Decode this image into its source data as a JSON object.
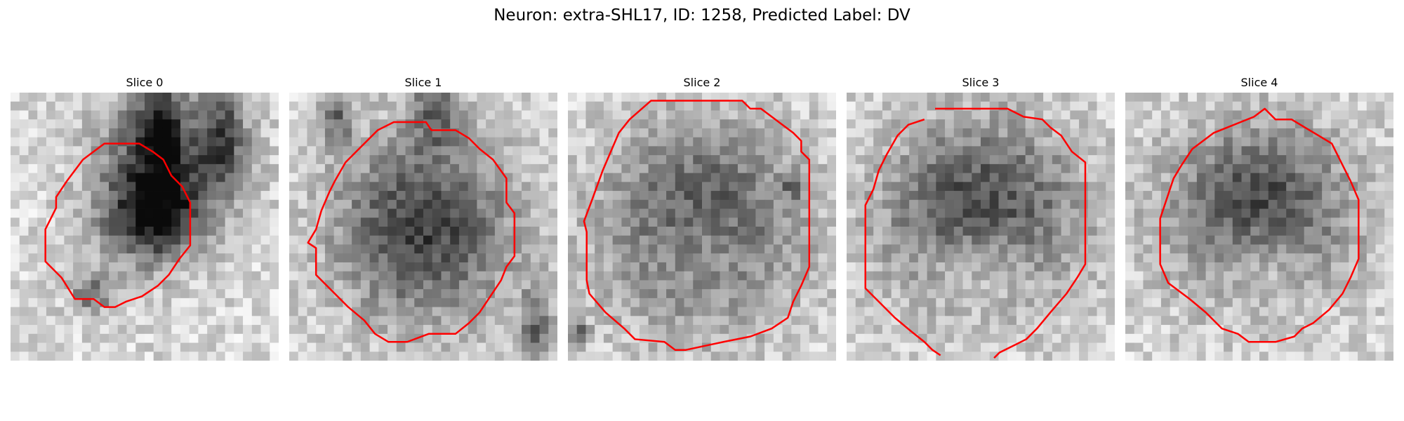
{
  "figure": {
    "title": "Neuron: extra-SHL17, ID: 1258, Predicted Label: DV"
  },
  "contour_color": "#ff0000",
  "slices": [
    {
      "title": "Slice 0",
      "seed": 11,
      "darkness": [
        [
          0.52,
          0.48,
          0.22,
          0.2
        ],
        [
          0.58,
          0.26,
          0.3,
          0.32
        ]
      ],
      "spots": [
        [
          0.8,
          0.15,
          0.1,
          0.25
        ],
        [
          0.55,
          0.1,
          0.1,
          0.28
        ],
        [
          0.3,
          0.75,
          0.1,
          0.1
        ]
      ],
      "contour": [
        [
          0.35,
          0.19
        ],
        [
          0.48,
          0.19
        ],
        [
          0.53,
          0.22
        ],
        [
          0.57,
          0.25
        ],
        [
          0.6,
          0.31
        ],
        [
          0.64,
          0.35
        ],
        [
          0.67,
          0.41
        ],
        [
          0.67,
          0.57
        ],
        [
          0.63,
          0.62
        ],
        [
          0.59,
          0.68
        ],
        [
          0.55,
          0.72
        ],
        [
          0.49,
          0.76
        ],
        [
          0.43,
          0.78
        ],
        [
          0.39,
          0.8
        ],
        [
          0.35,
          0.8
        ],
        [
          0.31,
          0.77
        ],
        [
          0.24,
          0.77
        ],
        [
          0.19,
          0.69
        ],
        [
          0.13,
          0.63
        ],
        [
          0.13,
          0.51
        ],
        [
          0.17,
          0.43
        ],
        [
          0.17,
          0.39
        ],
        [
          0.21,
          0.33
        ],
        [
          0.27,
          0.25
        ]
      ]
    },
    {
      "title": "Slice 1",
      "seed": 23,
      "darkness": [
        [
          0.5,
          0.51,
          0.41,
          0.42
        ]
      ],
      "spots": [
        [
          0.55,
          0.05,
          0.12,
          0.2
        ],
        [
          0.92,
          0.9,
          0.08,
          0.22
        ],
        [
          0.18,
          0.1,
          0.08,
          0.12
        ]
      ],
      "contour": [
        [
          0.44,
          0.11
        ],
        [
          0.51,
          0.11
        ],
        [
          0.53,
          0.14
        ],
        [
          0.62,
          0.14
        ],
        [
          0.67,
          0.17
        ],
        [
          0.71,
          0.21
        ],
        [
          0.76,
          0.25
        ],
        [
          0.81,
          0.32
        ],
        [
          0.81,
          0.41
        ],
        [
          0.84,
          0.45
        ],
        [
          0.84,
          0.61
        ],
        [
          0.81,
          0.65
        ],
        [
          0.79,
          0.7
        ],
        [
          0.75,
          0.76
        ],
        [
          0.71,
          0.82
        ],
        [
          0.67,
          0.86
        ],
        [
          0.62,
          0.9
        ],
        [
          0.52,
          0.9
        ],
        [
          0.44,
          0.93
        ],
        [
          0.37,
          0.93
        ],
        [
          0.32,
          0.9
        ],
        [
          0.28,
          0.85
        ],
        [
          0.22,
          0.8
        ],
        [
          0.15,
          0.73
        ],
        [
          0.1,
          0.68
        ],
        [
          0.1,
          0.58
        ],
        [
          0.07,
          0.56
        ],
        [
          0.1,
          0.51
        ],
        [
          0.12,
          0.44
        ],
        [
          0.15,
          0.37
        ],
        [
          0.17,
          0.33
        ],
        [
          0.21,
          0.26
        ],
        [
          0.27,
          0.2
        ],
        [
          0.33,
          0.14
        ],
        [
          0.39,
          0.11
        ]
      ]
    },
    {
      "title": "Slice 2",
      "seed": 37,
      "darkness": [
        [
          0.5,
          0.5,
          0.44,
          0.45
        ]
      ],
      "spots": [
        [
          0.85,
          0.35,
          0.05,
          0.05
        ],
        [
          0.05,
          0.9,
          0.05,
          0.05
        ]
      ],
      "contour": [
        [
          0.31,
          0.03
        ],
        [
          0.65,
          0.03
        ],
        [
          0.68,
          0.06
        ],
        [
          0.72,
          0.06
        ],
        [
          0.76,
          0.09
        ],
        [
          0.8,
          0.12
        ],
        [
          0.84,
          0.15
        ],
        [
          0.87,
          0.18
        ],
        [
          0.87,
          0.22
        ],
        [
          0.9,
          0.25
        ],
        [
          0.9,
          0.65
        ],
        [
          0.87,
          0.72
        ],
        [
          0.84,
          0.78
        ],
        [
          0.82,
          0.84
        ],
        [
          0.76,
          0.88
        ],
        [
          0.68,
          0.91
        ],
        [
          0.58,
          0.93
        ],
        [
          0.44,
          0.96
        ],
        [
          0.4,
          0.96
        ],
        [
          0.36,
          0.93
        ],
        [
          0.25,
          0.92
        ],
        [
          0.21,
          0.88
        ],
        [
          0.14,
          0.82
        ],
        [
          0.08,
          0.75
        ],
        [
          0.07,
          0.7
        ],
        [
          0.07,
          0.52
        ],
        [
          0.06,
          0.48
        ],
        [
          0.09,
          0.4
        ],
        [
          0.13,
          0.29
        ],
        [
          0.16,
          0.22
        ],
        [
          0.19,
          0.15
        ],
        [
          0.23,
          0.1
        ]
      ]
    },
    {
      "title": "Slice 3",
      "seed": 53,
      "darkness": [
        [
          0.5,
          0.45,
          0.45,
          0.42
        ]
      ],
      "spots": [],
      "contour": [
        [
          0.33,
          0.06
        ],
        [
          0.6,
          0.06
        ],
        [
          0.66,
          0.09
        ],
        [
          0.73,
          0.1
        ],
        [
          0.76,
          0.13
        ],
        [
          0.8,
          0.16
        ],
        [
          0.84,
          0.22
        ],
        [
          0.89,
          0.26
        ],
        [
          0.89,
          0.64
        ],
        [
          0.86,
          0.69
        ],
        [
          0.82,
          0.75
        ],
        [
          0.76,
          0.82
        ],
        [
          0.71,
          0.88
        ],
        [
          0.67,
          0.92
        ],
        [
          0.63,
          0.94
        ],
        [
          0.57,
          0.97
        ],
        [
          0.55,
          0.99
        ]
      ],
      "contour2": [
        [
          0.35,
          0.98
        ],
        [
          0.32,
          0.96
        ],
        [
          0.29,
          0.93
        ],
        [
          0.24,
          0.89
        ],
        [
          0.18,
          0.84
        ],
        [
          0.13,
          0.79
        ],
        [
          0.07,
          0.73
        ],
        [
          0.07,
          0.42
        ],
        [
          0.1,
          0.36
        ],
        [
          0.12,
          0.29
        ],
        [
          0.15,
          0.23
        ],
        [
          0.19,
          0.16
        ],
        [
          0.23,
          0.12
        ],
        [
          0.29,
          0.1
        ]
      ]
    },
    {
      "title": "Slice 4",
      "seed": 71,
      "darkness": [
        [
          0.5,
          0.45,
          0.42,
          0.4
        ]
      ],
      "spots": [],
      "contour": [
        [
          0.52,
          0.06
        ],
        [
          0.56,
          0.1
        ],
        [
          0.62,
          0.1
        ],
        [
          0.67,
          0.13
        ],
        [
          0.72,
          0.16
        ],
        [
          0.77,
          0.19
        ],
        [
          0.8,
          0.25
        ],
        [
          0.84,
          0.33
        ],
        [
          0.87,
          0.4
        ],
        [
          0.87,
          0.62
        ],
        [
          0.84,
          0.69
        ],
        [
          0.81,
          0.75
        ],
        [
          0.76,
          0.81
        ],
        [
          0.7,
          0.86
        ],
        [
          0.66,
          0.88
        ],
        [
          0.63,
          0.91
        ],
        [
          0.56,
          0.93
        ],
        [
          0.46,
          0.93
        ],
        [
          0.42,
          0.9
        ],
        [
          0.36,
          0.88
        ],
        [
          0.3,
          0.82
        ],
        [
          0.24,
          0.77
        ],
        [
          0.16,
          0.71
        ],
        [
          0.13,
          0.64
        ],
        [
          0.13,
          0.47
        ],
        [
          0.16,
          0.38
        ],
        [
          0.18,
          0.32
        ],
        [
          0.21,
          0.27
        ],
        [
          0.25,
          0.21
        ],
        [
          0.29,
          0.18
        ],
        [
          0.33,
          0.15
        ],
        [
          0.38,
          0.13
        ],
        [
          0.43,
          0.11
        ],
        [
          0.48,
          0.09
        ]
      ]
    }
  ]
}
